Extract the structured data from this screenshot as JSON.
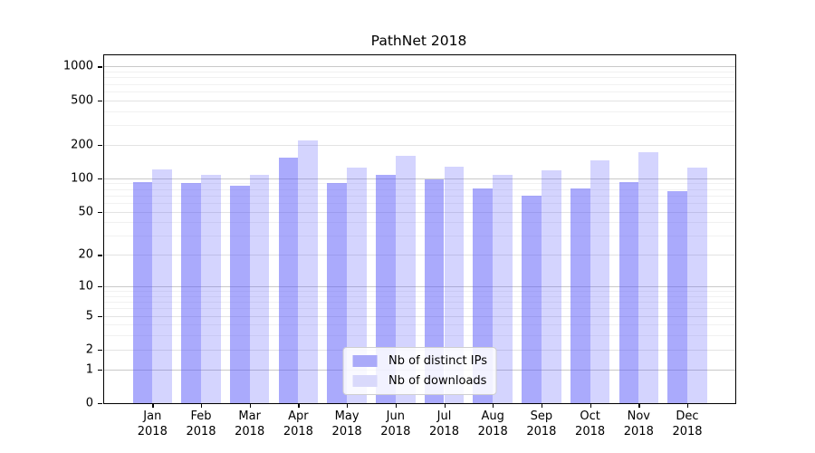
{
  "title": "PathNet 2018",
  "chart_data": {
    "type": "bar",
    "title": "PathNet 2018",
    "categories": [
      "Jan",
      "Feb",
      "Mar",
      "Apr",
      "May",
      "Jun",
      "Jul",
      "Aug",
      "Sep",
      "Oct",
      "Nov",
      "Dec"
    ],
    "year": "2018",
    "series": [
      {
        "key": "distinct-ips",
        "name": "Nb of distinct IPs",
        "swatch_color": "#aaaaf9",
        "fill": "rgba(85,85,250,0.5)",
        "values": [
          93,
          91,
          86,
          152,
          90,
          108,
          97,
          81,
          70,
          81,
          93,
          77
        ]
      },
      {
        "key": "downloads",
        "name": "Nb of downloads",
        "swatch_color": "#d9d9fb",
        "fill": "rgba(85,85,250,0.25)",
        "values": [
          120,
          107,
          107,
          218,
          125,
          158,
          127,
          108,
          117,
          145,
          173,
          124
        ]
      }
    ],
    "yscale": "symlog",
    "yticks": [
      1000,
      500,
      200,
      100,
      50,
      20,
      10,
      5,
      2,
      1,
      0
    ],
    "ylim": [
      0,
      1260
    ],
    "xlabel": "",
    "ylabel": "",
    "grid": "on",
    "legend_position": "lower center"
  }
}
